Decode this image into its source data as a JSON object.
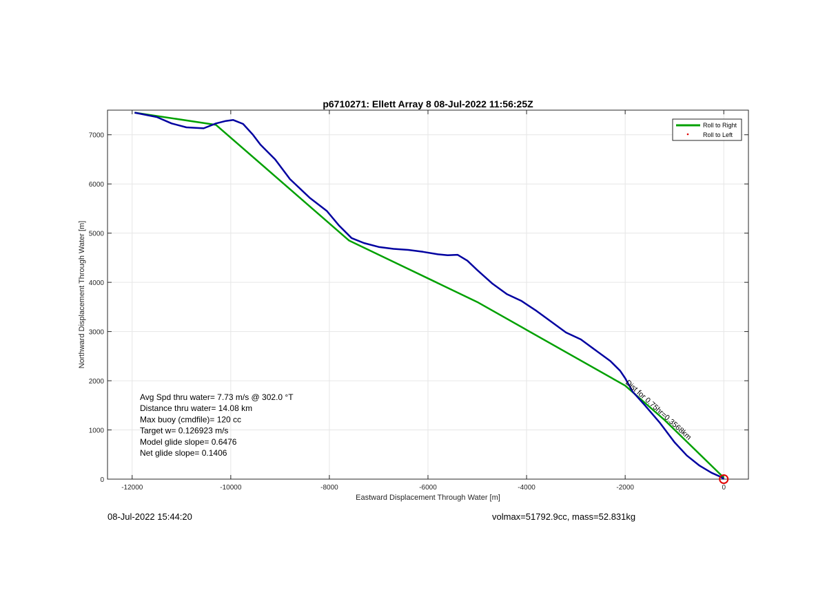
{
  "chart_data": {
    "type": "line",
    "title": "p6710271: Ellett Array 8 08-Jul-2022 11:56:25Z",
    "xlabel": "Eastward Displacement Through Water [m]",
    "ylabel": "Northward Displacement Through Water [m]",
    "xlim": [
      -12500,
      500
    ],
    "ylim": [
      0,
      7500
    ],
    "xticks": [
      -12000,
      -10000,
      -8000,
      -6000,
      -4000,
      -2000,
      0
    ],
    "yticks": [
      0,
      1000,
      2000,
      3000,
      4000,
      5000,
      6000,
      7000
    ],
    "xtick_labels": [
      "-12000",
      "-10000",
      "-8000",
      "-6000",
      "-4000",
      "-2000",
      "0"
    ],
    "ytick_labels": [
      "0",
      "1000",
      "2000",
      "3000",
      "4000",
      "5000",
      "6000",
      "7000"
    ],
    "grid": true,
    "legend": {
      "placement": "top-right",
      "entries": [
        "Roll to Right",
        "Roll to Left"
      ]
    },
    "series": [
      {
        "name": "Roll to Right",
        "color": "#00a000",
        "x": [
          -11950,
          -10300,
          -7600,
          -5000,
          -2000,
          -1200,
          0
        ],
        "y": [
          7450,
          7200,
          4850,
          3600,
          1900,
          1200,
          30
        ]
      },
      {
        "color": "#0000a0",
        "x": [
          -11950,
          -11500,
          -11200,
          -10900,
          -10550,
          -10300,
          -10100,
          -9950,
          -9750,
          -9550,
          -9400,
          -9100,
          -8800,
          -8400,
          -8050,
          -7800,
          -7550,
          -7300,
          -7000,
          -6700,
          -6400,
          -6100,
          -5800,
          -5600,
          -5400,
          -5200,
          -5000,
          -4700,
          -4400,
          -4100,
          -3800,
          -3500,
          -3200,
          -2900,
          -2600,
          -2300,
          -2100,
          -2000,
          -1850,
          -1600,
          -1300,
          -1000,
          -750,
          -500,
          -250,
          -50,
          0
        ],
        "y": [
          7450,
          7360,
          7230,
          7150,
          7130,
          7230,
          7280,
          7300,
          7220,
          7000,
          6800,
          6500,
          6100,
          5720,
          5450,
          5150,
          4900,
          4800,
          4720,
          4680,
          4660,
          4620,
          4570,
          4550,
          4560,
          4440,
          4250,
          3980,
          3760,
          3620,
          3420,
          3200,
          2980,
          2840,
          2620,
          2400,
          2200,
          2050,
          1780,
          1500,
          1150,
          750,
          480,
          280,
          130,
          40,
          0
        ]
      }
    ],
    "markers": [
      {
        "x": 0,
        "y": 0,
        "color": "#e00000",
        "shape": "circle"
      }
    ],
    "annotations": [
      {
        "text": "Avg Spd thru water=  7.73 m/s @ 302.0 °T"
      },
      {
        "text": "Distance thru water= 14.08 km"
      },
      {
        "text": "Max buoy (cmdfile)= 120 cc"
      },
      {
        "text": "Target w= 0.126923 m/s"
      },
      {
        "text": "Model glide slope= 0.6476"
      },
      {
        "text": "Net glide slope= 0.1406"
      }
    ],
    "slanted_label": "Dist for 0.75hr=0.3568km",
    "slanted_label_anchor": {
      "x": -2000,
      "y": 1950
    }
  },
  "footer": {
    "timestamp": "08-Jul-2022 15:44:20",
    "volmax": "volmax=51792.9cc, mass=52.831kg"
  }
}
